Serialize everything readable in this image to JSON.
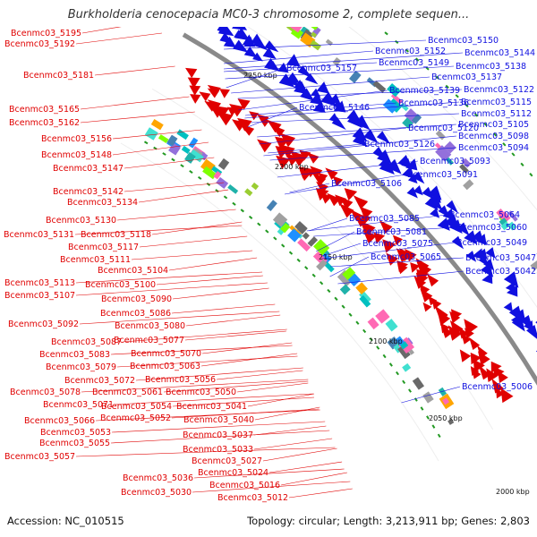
{
  "title": "Burkholderia cenocepacia MC0-3 chromosome 2, complete sequen...",
  "footer": {
    "accession": "Accession: NC_010515",
    "summary": "Topology: circular; Length: 3,213,911 bp; Genes: 2,803"
  },
  "colors": {
    "minus_strand": "#e00000",
    "plus_strand": "#1010e0",
    "backbone": "#8a8a8a"
  },
  "kbp_marks": [
    "2250 kbp",
    "2200 kbp",
    "2150 kbp",
    "2100 kbp",
    "2050 kbp",
    "2000 kbp"
  ],
  "left_labels": [
    "Bcenmc03_5195",
    "Bcenmc03_5192",
    "Bcenmc03_5181",
    "Bcenmc03_5165",
    "Bcenmc03_5162",
    "Bcenmc03_5156",
    "Bcenmc03_5148",
    "Bcenmc03_5147",
    "Bcenmc03_5142",
    "Bcenmc03_5134",
    "Bcenmc03_5130",
    "Bcenmc03_5131",
    "Bcenmc03_5118",
    "Bcenmc03_5117",
    "Bcenmc03_5111",
    "Bcenmc03_5104",
    "Bcenmc03_5113",
    "Bcenmc03_5100",
    "Bcenmc03_5107",
    "Bcenmc03_5090",
    "Bcenmc03_5086",
    "Bcenmc03_5092",
    "Bcenmc03_5080",
    "Bcenmc03_5077",
    "Bcenmc03_5087",
    "Bcenmc03_5070",
    "Bcenmc03_5083",
    "Bcenmc03_5063",
    "Bcenmc03_5079",
    "Bcenmc03_5056",
    "Bcenmc03_5072",
    "Bcenmc03_5061",
    "Bcenmc03_5050",
    "Bcenmc03_5078",
    "Bcenmc03_5071",
    "Bcenmc03_5054",
    "Bcenmc03_5041",
    "Bcenmc03_5066",
    "Bcenmc03_5052",
    "Bcenmc03_5040",
    "Bcenmc03_5053",
    "Bcenmc03_5037",
    "Bcenmc03_5055",
    "Bcenmc03_5033",
    "Bcenmc03_5057",
    "Bcenmc03_5027",
    "Bcenmc03_5024",
    "Bcenmc03_5036",
    "Bcenmc03_5016",
    "Bcenmc03_5030",
    "Bcenmc03_5012"
  ],
  "right_labels": [
    "Bcenmc03_5150",
    "Bcenmc03_5152",
    "Bcenmc03_5144",
    "Bcenmc03_5157",
    "Bcenmc03_5149",
    "Bcenmc03_5138",
    "Bcenmc03_5137",
    "Bcenmc03_5139",
    "Bcenmc03_5122",
    "Bcenmc03_5136",
    "Bcenmc03_5115",
    "Bcenmc03_5146",
    "Bcenmc03_5112",
    "Bcenmc03_5105",
    "Bcenmc03_5120",
    "Bcenmc03_5098",
    "Bcenmc03_5126",
    "Bcenmc03_5094",
    "Bcenmc03_5093",
    "Bcenmc03_5091",
    "Bcenmc03_5106",
    "Bcenmc03_5085",
    "Bcenmc03_5064",
    "Bcenmc03_5081",
    "Bcenmc03_5060",
    "Bcenmc03_5075",
    "Bcenmc03_5049",
    "Bcenmc03_5065",
    "Bcenmc03_5047",
    "Bcenmc03_5042",
    "Bcenmc03_5006"
  ]
}
